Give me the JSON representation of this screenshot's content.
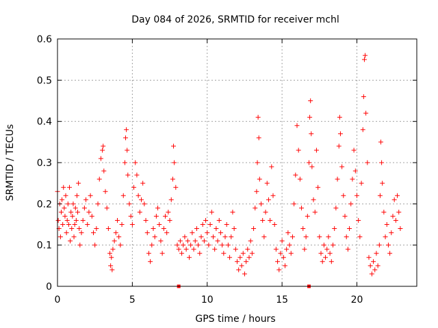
{
  "chart_data": {
    "type": "scatter",
    "title": "Day 084 of 2026, SRMTID for receiver mchl",
    "xlabel": "GPS time / hours",
    "ylabel": "SRMTID / TECUs",
    "xlim": [
      0,
      24
    ],
    "ylim": [
      0,
      0.6
    ],
    "xticks": [
      0,
      5,
      10,
      15,
      20
    ],
    "xtick_labels": [
      "0",
      "5",
      "10",
      "15",
      "20"
    ],
    "yticks": [
      0,
      0.1,
      0.2,
      0.3,
      0.4,
      0.5,
      0.6
    ],
    "ytick_labels": [
      "0",
      "0.1",
      "0.2",
      "0.3",
      "0.4",
      "0.5",
      "0.6"
    ],
    "grid": true,
    "marker": "+",
    "marker_color": "#ff0000",
    "series": [
      {
        "name": "SRMTID",
        "points": [
          [
            0.0,
            0.23
          ],
          [
            0.05,
            0.16
          ],
          [
            0.1,
            0.14
          ],
          [
            0.15,
            0.2
          ],
          [
            0.2,
            0.12
          ],
          [
            0.25,
            0.18
          ],
          [
            0.3,
            0.21
          ],
          [
            0.35,
            0.15
          ],
          [
            0.4,
            0.24
          ],
          [
            0.45,
            0.19
          ],
          [
            0.5,
            0.17
          ],
          [
            0.55,
            0.22
          ],
          [
            0.6,
            0.13
          ],
          [
            0.65,
            0.16
          ],
          [
            0.7,
            0.2
          ],
          [
            0.75,
            0.15
          ],
          [
            0.8,
            0.24
          ],
          [
            0.85,
            0.11
          ],
          [
            0.9,
            0.18
          ],
          [
            0.95,
            0.14
          ],
          [
            1.0,
            0.17
          ],
          [
            1.05,
            0.2
          ],
          [
            1.1,
            0.12
          ],
          [
            1.15,
            0.15
          ],
          [
            1.2,
            0.19
          ],
          [
            1.25,
            0.16
          ],
          [
            1.3,
            0.22
          ],
          [
            1.35,
            0.18
          ],
          [
            1.4,
            0.25
          ],
          [
            1.45,
            0.14
          ],
          [
            1.5,
            0.1
          ],
          [
            1.6,
            0.13
          ],
          [
            1.7,
            0.16
          ],
          [
            1.8,
            0.19
          ],
          [
            1.9,
            0.21
          ],
          [
            2.0,
            0.15
          ],
          [
            2.1,
            0.18
          ],
          [
            2.2,
            0.22
          ],
          [
            2.3,
            0.17
          ],
          [
            2.4,
            0.13
          ],
          [
            2.5,
            0.1
          ],
          [
            2.6,
            0.14
          ],
          [
            2.7,
            0.2
          ],
          [
            2.8,
            0.26
          ],
          [
            2.9,
            0.31
          ],
          [
            3.0,
            0.33
          ],
          [
            3.05,
            0.34
          ],
          [
            3.1,
            0.28
          ],
          [
            3.2,
            0.23
          ],
          [
            3.3,
            0.19
          ],
          [
            3.4,
            0.14
          ],
          [
            3.5,
            0.08
          ],
          [
            3.55,
            0.05
          ],
          [
            3.6,
            0.07
          ],
          [
            3.65,
            0.04
          ],
          [
            3.7,
            0.09
          ],
          [
            3.8,
            0.11
          ],
          [
            3.9,
            0.13
          ],
          [
            4.0,
            0.16
          ],
          [
            4.1,
            0.12
          ],
          [
            4.2,
            0.1
          ],
          [
            4.3,
            0.15
          ],
          [
            4.4,
            0.22
          ],
          [
            4.5,
            0.3
          ],
          [
            4.55,
            0.36
          ],
          [
            4.6,
            0.38
          ],
          [
            4.65,
            0.33
          ],
          [
            4.7,
            0.27
          ],
          [
            4.8,
            0.2
          ],
          [
            4.9,
            0.17
          ],
          [
            5.0,
            0.15
          ],
          [
            5.1,
            0.24
          ],
          [
            5.2,
            0.3
          ],
          [
            5.3,
            0.27
          ],
          [
            5.4,
            0.22
          ],
          [
            5.5,
            0.18
          ],
          [
            5.6,
            0.21
          ],
          [
            5.7,
            0.25
          ],
          [
            5.8,
            0.2
          ],
          [
            5.9,
            0.16
          ],
          [
            6.0,
            0.13
          ],
          [
            6.1,
            0.08
          ],
          [
            6.2,
            0.06
          ],
          [
            6.3,
            0.1
          ],
          [
            6.4,
            0.14
          ],
          [
            6.5,
            0.12
          ],
          [
            6.6,
            0.17
          ],
          [
            6.7,
            0.19
          ],
          [
            6.8,
            0.15
          ],
          [
            6.9,
            0.11
          ],
          [
            7.0,
            0.08
          ],
          [
            7.1,
            0.14
          ],
          [
            7.2,
            0.17
          ],
          [
            7.3,
            0.13
          ],
          [
            7.4,
            0.18
          ],
          [
            7.5,
            0.16
          ],
          [
            7.6,
            0.21
          ],
          [
            7.7,
            0.26
          ],
          [
            7.75,
            0.34
          ],
          [
            7.8,
            0.3
          ],
          [
            7.9,
            0.24
          ],
          [
            8.0,
            0.1
          ],
          [
            8.1,
            0.09
          ],
          [
            8.2,
            0.11
          ],
          [
            8.3,
            0.08
          ],
          [
            8.4,
            0.1
          ],
          [
            8.5,
            0.12
          ],
          [
            8.6,
            0.09
          ],
          [
            8.7,
            0.11
          ],
          [
            8.8,
            0.07
          ],
          [
            8.9,
            0.1
          ],
          [
            9.0,
            0.13
          ],
          [
            9.1,
            0.09
          ],
          [
            9.2,
            0.11
          ],
          [
            9.3,
            0.14
          ],
          [
            9.4,
            0.1
          ],
          [
            9.5,
            0.08
          ],
          [
            9.6,
            0.12
          ],
          [
            9.7,
            0.15
          ],
          [
            9.8,
            0.11
          ],
          [
            9.9,
            0.16
          ],
          [
            10.0,
            0.13
          ],
          [
            10.1,
            0.1
          ],
          [
            10.2,
            0.15
          ],
          [
            10.3,
            0.18
          ],
          [
            10.4,
            0.12
          ],
          [
            10.5,
            0.09
          ],
          [
            10.6,
            0.14
          ],
          [
            10.7,
            0.11
          ],
          [
            10.8,
            0.16
          ],
          [
            10.9,
            0.13
          ],
          [
            11.0,
            0.1
          ],
          [
            11.1,
            0.08
          ],
          [
            11.2,
            0.12
          ],
          [
            11.3,
            0.15
          ],
          [
            11.4,
            0.1
          ],
          [
            11.5,
            0.07
          ],
          [
            11.6,
            0.12
          ],
          [
            11.7,
            0.18
          ],
          [
            11.8,
            0.14
          ],
          [
            11.9,
            0.09
          ],
          [
            12.0,
            0.06
          ],
          [
            12.1,
            0.04
          ],
          [
            12.2,
            0.07
          ],
          [
            12.3,
            0.05
          ],
          [
            12.4,
            0.08
          ],
          [
            12.5,
            0.03
          ],
          [
            12.6,
            0.06
          ],
          [
            12.7,
            0.09
          ],
          [
            12.8,
            0.07
          ],
          [
            12.9,
            0.11
          ],
          [
            13.0,
            0.08
          ],
          [
            13.1,
            0.14
          ],
          [
            13.2,
            0.19
          ],
          [
            13.3,
            0.23
          ],
          [
            13.35,
            0.3
          ],
          [
            13.4,
            0.41
          ],
          [
            13.45,
            0.36
          ],
          [
            13.5,
            0.26
          ],
          [
            13.6,
            0.2
          ],
          [
            13.7,
            0.16
          ],
          [
            13.8,
            0.12
          ],
          [
            13.9,
            0.18
          ],
          [
            14.0,
            0.25
          ],
          [
            14.1,
            0.21
          ],
          [
            14.2,
            0.16
          ],
          [
            14.3,
            0.29
          ],
          [
            14.4,
            0.22
          ],
          [
            14.5,
            0.15
          ],
          [
            14.6,
            0.09
          ],
          [
            14.7,
            0.06
          ],
          [
            14.8,
            0.04
          ],
          [
            14.9,
            0.08
          ],
          [
            15.0,
            0.11
          ],
          [
            15.1,
            0.07
          ],
          [
            15.2,
            0.05
          ],
          [
            15.3,
            0.09
          ],
          [
            15.4,
            0.13
          ],
          [
            15.5,
            0.1
          ],
          [
            15.6,
            0.08
          ],
          [
            15.7,
            0.12
          ],
          [
            15.8,
            0.2
          ],
          [
            15.9,
            0.27
          ],
          [
            16.0,
            0.39
          ],
          [
            16.1,
            0.33
          ],
          [
            16.2,
            0.26
          ],
          [
            16.3,
            0.19
          ],
          [
            16.4,
            0.14
          ],
          [
            16.5,
            0.09
          ],
          [
            16.6,
            0.12
          ],
          [
            16.7,
            0.17
          ],
          [
            16.8,
            0.3
          ],
          [
            16.85,
            0.41
          ],
          [
            16.9,
            0.45
          ],
          [
            16.95,
            0.37
          ],
          [
            17.0,
            0.29
          ],
          [
            17.1,
            0.21
          ],
          [
            17.2,
            0.18
          ],
          [
            17.3,
            0.33
          ],
          [
            17.4,
            0.24
          ],
          [
            17.5,
            0.12
          ],
          [
            17.6,
            0.08
          ],
          [
            17.7,
            0.06
          ],
          [
            17.8,
            0.1
          ],
          [
            17.9,
            0.07
          ],
          [
            18.0,
            0.09
          ],
          [
            18.1,
            0.12
          ],
          [
            18.2,
            0.08
          ],
          [
            18.3,
            0.06
          ],
          [
            18.4,
            0.1
          ],
          [
            18.5,
            0.14
          ],
          [
            18.6,
            0.19
          ],
          [
            18.7,
            0.26
          ],
          [
            18.8,
            0.34
          ],
          [
            18.85,
            0.41
          ],
          [
            18.9,
            0.37
          ],
          [
            19.0,
            0.29
          ],
          [
            19.1,
            0.22
          ],
          [
            19.2,
            0.17
          ],
          [
            19.3,
            0.12
          ],
          [
            19.4,
            0.09
          ],
          [
            19.5,
            0.14
          ],
          [
            19.6,
            0.2
          ],
          [
            19.7,
            0.26
          ],
          [
            19.8,
            0.33
          ],
          [
            19.9,
            0.28
          ],
          [
            20.0,
            0.22
          ],
          [
            20.1,
            0.16
          ],
          [
            20.2,
            0.12
          ],
          [
            20.3,
            0.25
          ],
          [
            20.4,
            0.38
          ],
          [
            20.45,
            0.46
          ],
          [
            20.5,
            0.55
          ],
          [
            20.55,
            0.56
          ],
          [
            20.6,
            0.42
          ],
          [
            20.7,
            0.3
          ],
          [
            20.8,
            0.07
          ],
          [
            20.9,
            0.05
          ],
          [
            21.0,
            0.03
          ],
          [
            21.1,
            0.06
          ],
          [
            21.2,
            0.04
          ],
          [
            21.3,
            0.08
          ],
          [
            21.4,
            0.05
          ],
          [
            21.5,
            0.1
          ],
          [
            21.55,
            0.22
          ],
          [
            21.6,
            0.35
          ],
          [
            21.65,
            0.3
          ],
          [
            21.7,
            0.25
          ],
          [
            21.8,
            0.18
          ],
          [
            21.9,
            0.12
          ],
          [
            22.0,
            0.15
          ],
          [
            22.1,
            0.1
          ],
          [
            22.2,
            0.08
          ],
          [
            22.3,
            0.13
          ],
          [
            22.4,
            0.17
          ],
          [
            22.5,
            0.21
          ],
          [
            22.6,
            0.16
          ],
          [
            22.7,
            0.22
          ],
          [
            22.8,
            0.18
          ],
          [
            22.9,
            0.14
          ]
        ]
      }
    ],
    "zero_markers": [
      8.1,
      16.8
    ]
  }
}
